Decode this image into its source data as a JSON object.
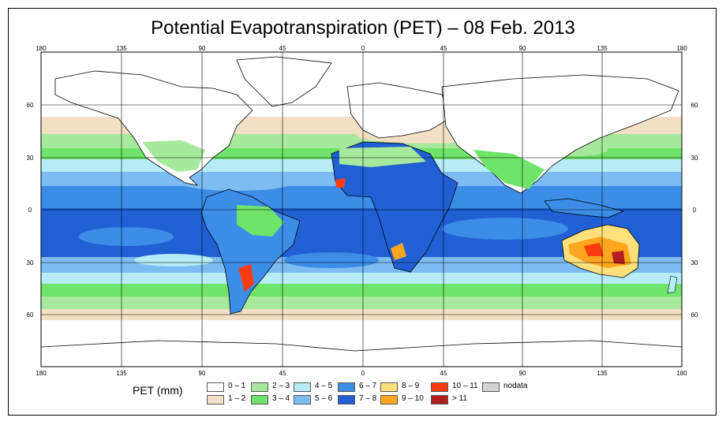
{
  "title": "Potential Evapotranspiration (PET) – 08 Feb. 2013",
  "map": {
    "lon_ticks": [
      "180",
      "135",
      "90",
      "45",
      "0",
      "45",
      "90",
      "135",
      "180"
    ],
    "lat_ticks": [
      "60",
      "30",
      "0",
      "30",
      "60"
    ],
    "lon_range": [
      -180,
      180
    ],
    "lat_range": [
      -90,
      90
    ]
  },
  "legend": {
    "label": "PET (mm)",
    "classes": [
      {
        "label": "0 – 1",
        "color": "#ffffff"
      },
      {
        "label": "1 – 2",
        "color": "#f3dfc4"
      },
      {
        "label": "2 – 3",
        "color": "#a6e89c"
      },
      {
        "label": "3 – 4",
        "color": "#6fe36a"
      },
      {
        "label": "4 – 5",
        "color": "#b5ecf5"
      },
      {
        "label": "5 – 6",
        "color": "#7dbcf2"
      },
      {
        "label": "6 – 7",
        "color": "#3b8de8"
      },
      {
        "label": "7 – 8",
        "color": "#2160d4"
      },
      {
        "label": "8 – 9",
        "color": "#ffe07a"
      },
      {
        "label": "9 – 10",
        "color": "#ffa51e"
      },
      {
        "label": "10 – 11",
        "color": "#ff3c10"
      },
      {
        "label": "> 11",
        "color": "#b01e1e"
      },
      {
        "label": "nodata",
        "color": "#d3d3d3"
      }
    ]
  }
}
